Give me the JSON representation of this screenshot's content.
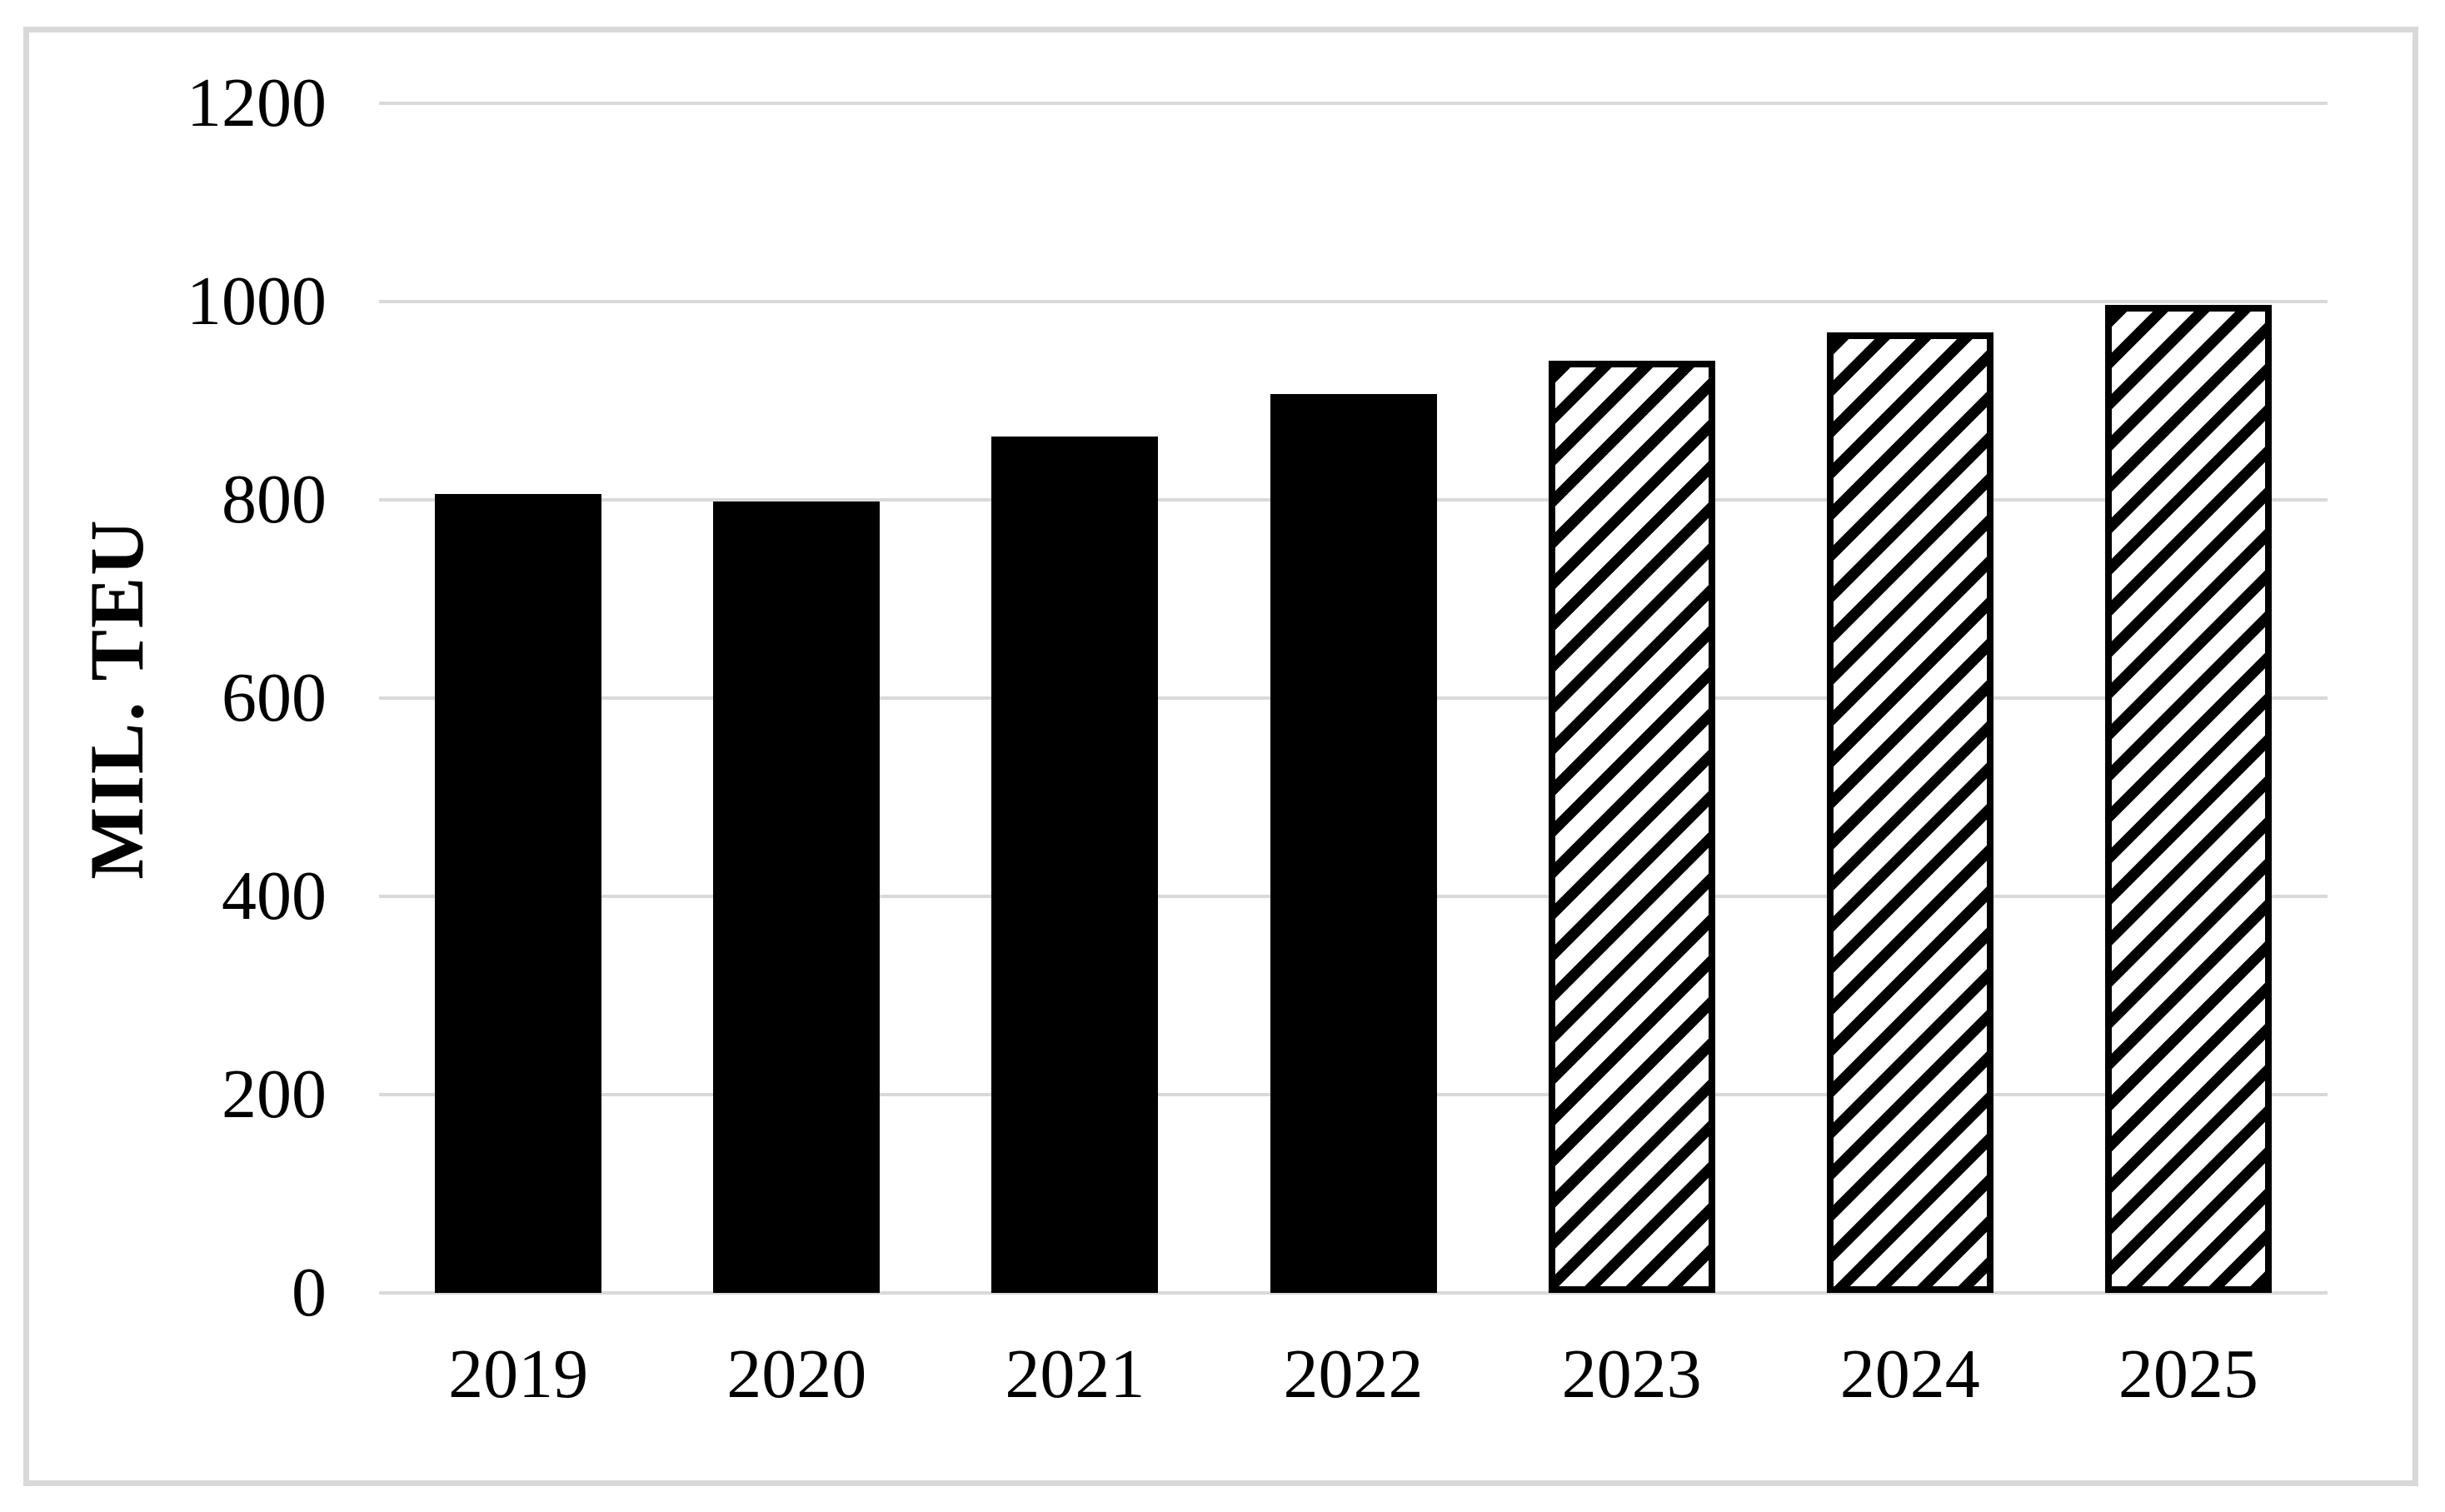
{
  "figure": {
    "background_color": "#ffffff",
    "frame_color": "#d9d9d9"
  },
  "chart_data": {
    "type": "bar",
    "title": "",
    "xlabel": "",
    "ylabel": "MIL. TEU",
    "categories": [
      "2019",
      "2020",
      "2021",
      "2022",
      "2023",
      "2024",
      "2025"
    ],
    "values": [
      806,
      798,
      864,
      907,
      940,
      969,
      997
    ],
    "bar_styles": [
      "solid",
      "solid",
      "solid",
      "solid",
      "hatched",
      "hatched",
      "hatched"
    ],
    "bar_color": "#000000",
    "hatch_pattern": "diagonal-stripes-up",
    "hatch_foreground": "#000000",
    "hatch_background": "#ffffff",
    "ylim": [
      0,
      1200
    ],
    "ytick_step": 200,
    "yticks": [
      "0",
      "200",
      "400",
      "600",
      "800",
      "1000",
      "1200"
    ],
    "grid": "horizontal",
    "gridline_color": "#d9d9d9",
    "legend": "none"
  }
}
